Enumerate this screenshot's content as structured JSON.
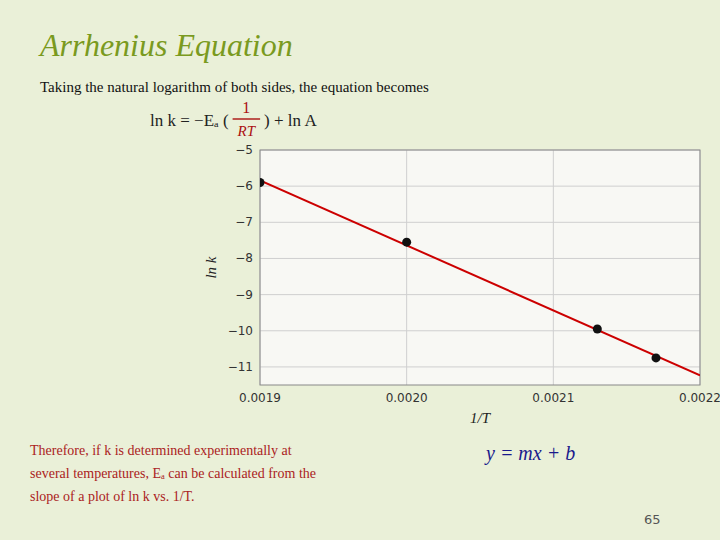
{
  "chart_data": {
    "type": "scatter",
    "title": "Arrhenius Equation",
    "subtitle": "Taking the natural logarithm of both sides, the equation becomes",
    "x_label": "1/T",
    "y_label": "ln k",
    "xlim": [
      0.0019,
      0.0022
    ],
    "ylim": [
      -11.5,
      -5.0
    ],
    "xticks": [
      {
        "value": 0.0019,
        "label": "0.0019"
      },
      {
        "value": 0.002,
        "label": "0.0020"
      },
      0.0021,
      0.0022
    ],
    "yticks": [
      {
        "value": -11,
        "label": "−11"
      },
      {
        "value": -10,
        "label": "−10"
      },
      {
        "value": -9,
        "label": "−9"
      },
      {
        "value": -8,
        "label": "−8"
      },
      {
        "value": -7,
        "label": "−7"
      },
      {
        "value": -6,
        "label": "−6"
      },
      {
        "value": -5,
        "label": "−5"
      }
    ],
    "grid": true,
    "series": [
      {
        "type": "scatter",
        "color": "#111111",
        "marker": "circle",
        "x": [
          0.0019,
          0.002,
          0.00213,
          0.00217
        ],
        "values": [
          -5.9,
          -7.55,
          -9.95,
          -10.75
        ]
      },
      {
        "type": "line",
        "color": "#cc0000",
        "line_style": "solid",
        "x": [
          0.0019,
          0.0022
        ],
        "values": [
          -5.8404,
          -11.2346
        ]
      }
    ],
    "annotations": [
      "ln k = −Eₐ (",
      "1",
      "RT",
      ") + ln A",
      "Therefore, if k is determined experimentally at\nseveral temperatures, Eₐ can be calculated from the\nslope of a plot of ln k vs. 1/T.",
      "y = mx + b",
      "65"
    ]
  }
}
